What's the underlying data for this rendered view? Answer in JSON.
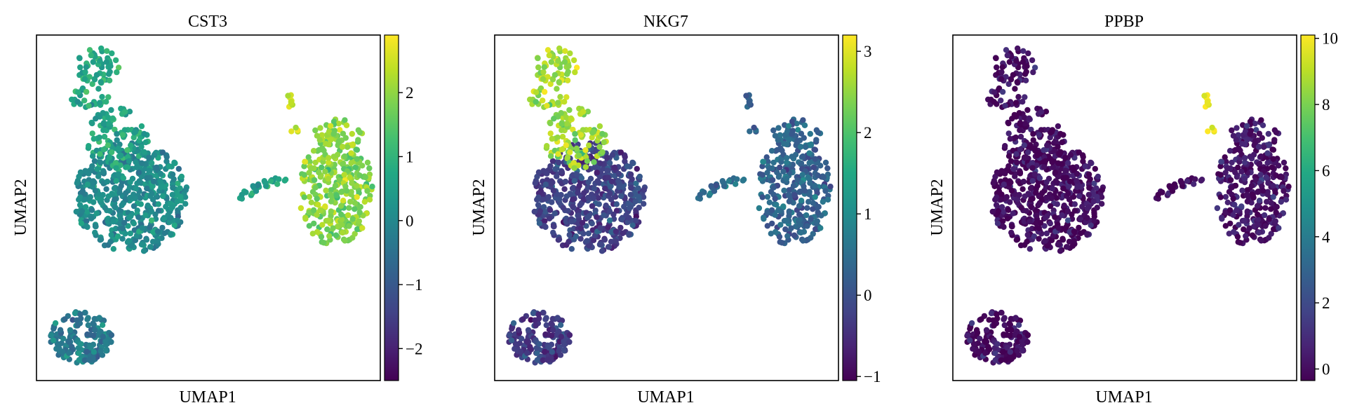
{
  "chart_data": [
    {
      "type": "scatter",
      "title": "CST3",
      "xlabel": "UMAP1",
      "ylabel": "UMAP2",
      "colorbar": {
        "colormap": "viridis",
        "vmin": -2.5,
        "vmax": 2.9,
        "ticks": [
          2,
          1,
          0,
          -1,
          -2
        ],
        "tick_labels": [
          "2",
          "1",
          "0",
          "−1",
          "−2"
        ]
      },
      "cluster_levels": {
        "upper_left_top": 0.7,
        "upper_left_body": 0.1,
        "right_cluster": 1.9,
        "right_tail": 0.6,
        "lower_left": -0.3,
        "right_top_spot": 2.4
      }
    },
    {
      "type": "scatter",
      "title": "NKG7",
      "xlabel": "UMAP1",
      "ylabel": "UMAP2",
      "colorbar": {
        "colormap": "viridis",
        "vmin": -1.05,
        "vmax": 3.2,
        "ticks": [
          3,
          2,
          1,
          0,
          -1
        ],
        "tick_labels": [
          "3",
          "2",
          "1",
          "0",
          "−1"
        ]
      },
      "cluster_levels": {
        "upper_left_top": 2.6,
        "upper_left_body": -0.2,
        "right_cluster": 0.3,
        "right_tail": 0.5,
        "lower_left": -0.3,
        "right_top_spot": 0.2
      }
    },
    {
      "type": "scatter",
      "title": "PPBP",
      "xlabel": "UMAP1",
      "ylabel": "UMAP2",
      "colorbar": {
        "colormap": "viridis",
        "vmin": -0.35,
        "vmax": 10.1,
        "ticks": [
          10,
          8,
          6,
          4,
          2,
          0
        ],
        "tick_labels": [
          "10",
          "8",
          "6",
          "4",
          "2",
          "0"
        ]
      },
      "cluster_levels": {
        "upper_left_top": 0.0,
        "upper_left_body": 0.0,
        "right_cluster": 0.2,
        "right_tail": 0.0,
        "lower_left": 0.0,
        "right_top_spot": 9.8
      }
    }
  ]
}
